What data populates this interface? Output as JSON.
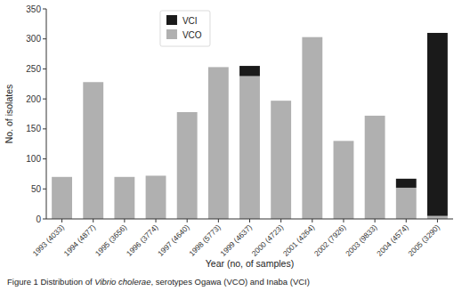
{
  "chart_data": {
    "type": "bar",
    "stacked": true,
    "categories": [
      "1993 (4033)",
      "1994 (4877)",
      "1995 (3656)",
      "1996 (3774)",
      "1997 (4640)",
      "1998 (5773)",
      "1999 (4637)",
      "2000 (4723)",
      "2001 (4264)",
      "2002 (7926)",
      "2003 (9833)",
      "2004 (4574)",
      "2005 (3290)"
    ],
    "series": [
      {
        "name": "VCO",
        "color": "#b0b0b0",
        "values": [
          70,
          228,
          70,
          72,
          178,
          253,
          238,
          197,
          303,
          130,
          172,
          52,
          5
        ]
      },
      {
        "name": "VCI",
        "color": "#1a1a1a",
        "values": [
          0,
          0,
          0,
          0,
          0,
          0,
          17,
          0,
          0,
          0,
          0,
          15,
          305
        ]
      }
    ],
    "ylabel": "No. of isolates",
    "xlabel": "Year (no, of samples)",
    "ylim": [
      0,
      350
    ],
    "yticks": [
      0,
      50,
      100,
      150,
      200,
      250,
      300,
      350
    ],
    "grid": false,
    "legend": "upper left",
    "annotations": [
      "Figure 1 Distribution of ",
      "Vibrio cholerae",
      ", serotypes Ogawa (VCO) and Inaba (VCI)"
    ]
  }
}
